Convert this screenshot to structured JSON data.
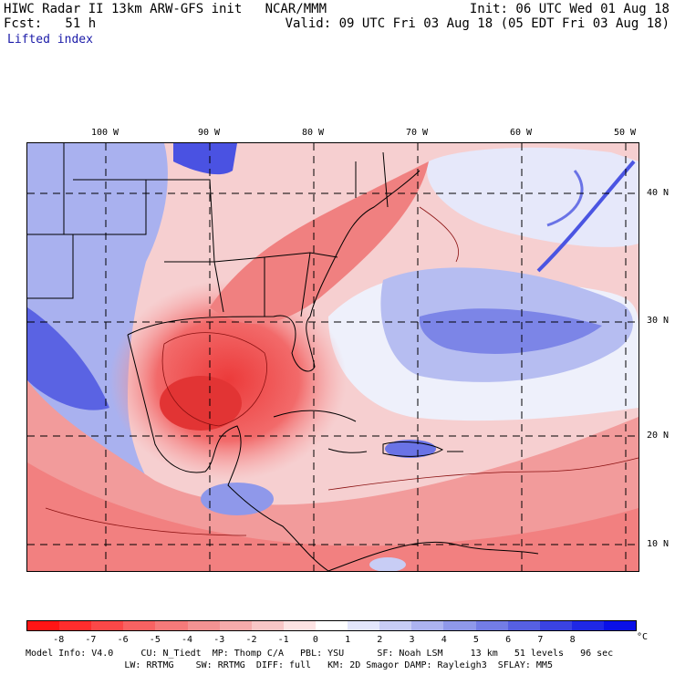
{
  "header": {
    "line1_left": "HIWC Radar II 13km ARW-GFS init   NCAR/MMM",
    "line1_right": "Init: 06 UTC Wed 01 Aug 18",
    "line2_left": "Fcst:   51 h",
    "line2_right": "Valid: 09 UTC Fri 03 Aug 18 (05 EDT Fri 03 Aug 18)",
    "field": "Lifted index"
  },
  "map": {
    "lon_labels": [
      "100 W",
      "90 W",
      "80 W",
      "70 W",
      "60 W",
      "50 W"
    ],
    "lat_labels": [
      "40 N",
      "30 N",
      "20 N",
      "10 N"
    ],
    "warm_color": "#f23b3b",
    "cool_color": "#2430e6"
  },
  "colorbar": {
    "labels": [
      "-8",
      "-7",
      "-6",
      "-5",
      "-4",
      "-3",
      "-2",
      "-1",
      "0",
      "1",
      "2",
      "3",
      "4",
      "5",
      "6",
      "7",
      "8"
    ],
    "unit": "°C",
    "colors": [
      "#ff1515",
      "#ff2d2d",
      "#fb4848",
      "#f86262",
      "#f57a7a",
      "#f39292",
      "#f5abab",
      "#f8c6c6",
      "#fde3e3",
      "#ffffff",
      "#e3e6fb",
      "#c8cdf5",
      "#acb3f0",
      "#8f98ea",
      "#737de6",
      "#5660e3",
      "#3a43e3",
      "#1f28e6",
      "#0a10e8"
    ]
  },
  "footer": {
    "line1": "Model Info: V4.0     CU: N_Tiedt  MP: Thomp C/A   PBL: YSU      SF: Noah LSM     13 km   51 levels   96 sec",
    "line2": "                  LW: RRTMG    SW: RRTMG  DIFF: full   KM: 2D Smagor DAMP: Rayleigh3  SFLAY: MM5"
  }
}
